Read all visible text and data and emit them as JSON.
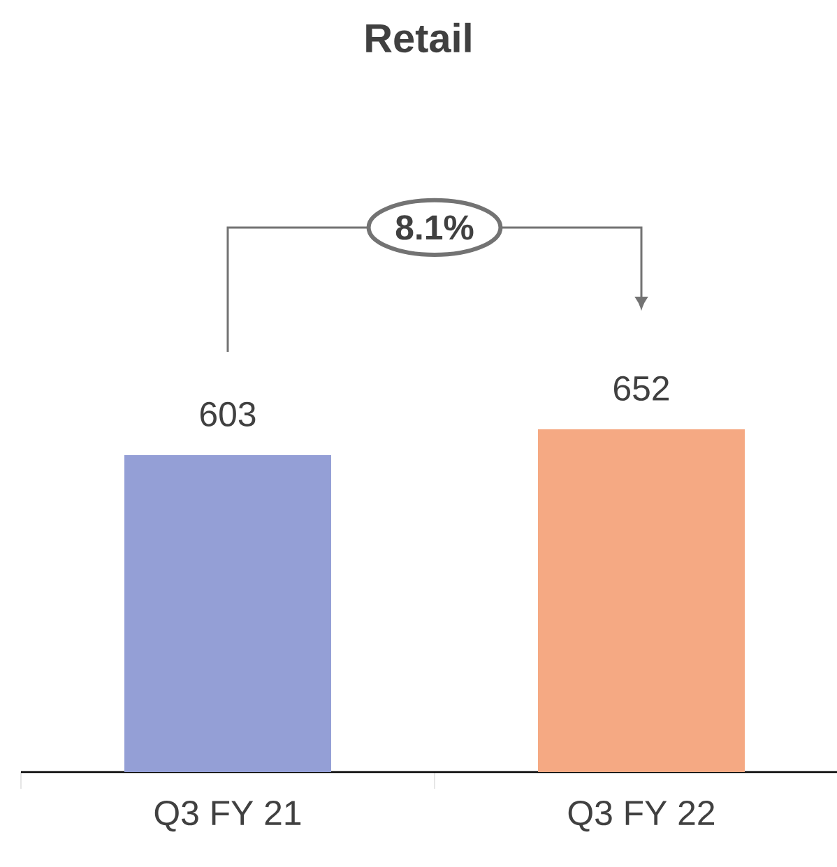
{
  "chart_data": {
    "type": "bar",
    "title": "Retail",
    "categories": [
      "Q3 FY 21",
      "Q3 FY 22"
    ],
    "values": [
      603,
      652
    ],
    "colors": [
      "#949fd6",
      "#f5a983"
    ],
    "data_labels": true,
    "annotations": [
      "8.1%"
    ]
  }
}
